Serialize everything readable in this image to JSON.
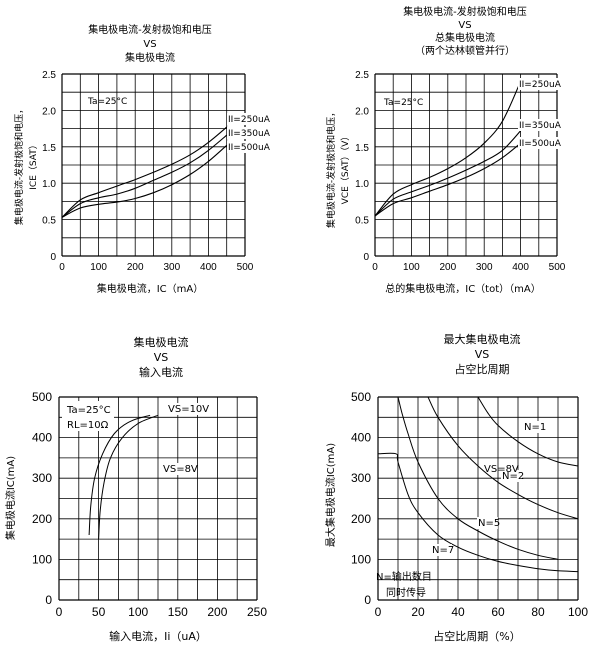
{
  "chart_data": [
    {
      "type": "line",
      "title_lines": [
        "集电极电流-发射极饱和电压",
        "VS",
        "集电极电流"
      ],
      "xlabel": "集电极电流，IC（mA）",
      "ylabel_lines": [
        "集电极电流-发射极饱和电压，",
        "ICE（SAT）"
      ],
      "xlim": [
        0,
        500
      ],
      "ylim": [
        0,
        2.5
      ],
      "xticks": [
        0,
        100,
        200,
        300,
        400,
        500
      ],
      "yticks": [
        0,
        0.5,
        1.0,
        1.5,
        2.0,
        2.5
      ],
      "ytick_labels": [
        "0",
        "0.5",
        "1.0",
        "1.5",
        "2.0",
        "2.5"
      ],
      "annotations": [
        "Ta=25°C"
      ],
      "series": [
        {
          "name": "II=250uA",
          "x": [
            0,
            50,
            100,
            150,
            200,
            250,
            300,
            350,
            400,
            450
          ],
          "y": [
            0.53,
            0.77,
            0.87,
            0.96,
            1.05,
            1.15,
            1.26,
            1.39,
            1.56,
            1.77
          ]
        },
        {
          "name": "II=350uA",
          "x": [
            0,
            50,
            100,
            150,
            200,
            250,
            300,
            350,
            400,
            450
          ],
          "y": [
            0.53,
            0.72,
            0.8,
            0.85,
            0.93,
            1.04,
            1.15,
            1.28,
            1.45,
            1.66
          ]
        },
        {
          "name": "II=500uA",
          "x": [
            0,
            50,
            100,
            150,
            200,
            250,
            300,
            350,
            400,
            450
          ],
          "y": [
            0.53,
            0.66,
            0.71,
            0.74,
            0.79,
            0.87,
            0.98,
            1.12,
            1.3,
            1.52
          ]
        }
      ],
      "grid": true
    },
    {
      "type": "line",
      "title_lines": [
        "集电极电流-发射极饱和电压",
        "VS",
        "总集电极电流",
        "（两个达林顿管并行）"
      ],
      "xlabel": "总的集电极电流，IC（tot）（mA）",
      "ylabel_lines": [
        "集电极电流-发射极饱和电压，",
        "VCE（SAT）（V）"
      ],
      "xlim": [
        0,
        500
      ],
      "ylim": [
        0,
        2.5
      ],
      "xticks": [
        0,
        100,
        200,
        300,
        400,
        500
      ],
      "yticks": [
        0,
        0.5,
        1.0,
        1.5,
        2.0,
        2.5
      ],
      "ytick_labels": [
        "0",
        "0.5",
        "1.0",
        "1.5",
        "2.0",
        "2.5"
      ],
      "annotations": [
        "Ta=25°C"
      ],
      "series": [
        {
          "name": "II=250uA",
          "x": [
            0,
            50,
            100,
            150,
            200,
            250,
            300,
            350,
            400
          ],
          "y": [
            0.55,
            0.85,
            0.98,
            1.08,
            1.2,
            1.35,
            1.55,
            1.85,
            2.4
          ]
        },
        {
          "name": "II=350uA",
          "x": [
            0,
            50,
            100,
            150,
            200,
            250,
            300,
            350,
            400
          ],
          "y": [
            0.55,
            0.78,
            0.88,
            0.97,
            1.07,
            1.18,
            1.3,
            1.45,
            1.72
          ]
        },
        {
          "name": "II=500uA",
          "x": [
            0,
            50,
            100,
            150,
            200,
            250,
            300,
            350,
            400
          ],
          "y": [
            0.55,
            0.72,
            0.8,
            0.89,
            0.98,
            1.08,
            1.2,
            1.35,
            1.55
          ]
        }
      ],
      "grid": true
    },
    {
      "type": "line",
      "title_lines": [
        "集电极电流",
        "VS",
        "输入电流"
      ],
      "xlabel": "输入电流，Ii（uA）",
      "ylabel_lines": [
        "集电极电流IC(mA)"
      ],
      "xlim": [
        0,
        250
      ],
      "ylim": [
        0,
        500
      ],
      "xticks": [
        0,
        50,
        100,
        150,
        200,
        250
      ],
      "yticks": [
        0,
        100,
        200,
        300,
        400,
        500
      ],
      "ytick_labels": [
        "0",
        "100",
        "200",
        "300",
        "400",
        "500"
      ],
      "annotations": [
        "Ta=25°C",
        "RL=10Ω"
      ],
      "series": [
        {
          "name": "VS=10V",
          "x": [
            38,
            40,
            45,
            55,
            70,
            90,
            115
          ],
          "y": [
            160,
            230,
            300,
            360,
            410,
            440,
            455
          ]
        },
        {
          "name": "VS=8V",
          "x": [
            50,
            52,
            57,
            65,
            80,
            100,
            125
          ],
          "y": [
            150,
            220,
            290,
            350,
            400,
            435,
            455
          ]
        }
      ],
      "grid": true
    },
    {
      "type": "line",
      "title_lines": [
        "最大集电极电流",
        "VS",
        "占空比周期"
      ],
      "xlabel": "占空比周期（%）",
      "ylabel_lines": [
        "最大集电极电流IC(mA)"
      ],
      "xlim": [
        0,
        100
      ],
      "ylim": [
        0,
        500
      ],
      "xticks": [
        0,
        20,
        40,
        60,
        80,
        100
      ],
      "yticks": [
        0,
        100,
        200,
        300,
        400,
        500
      ],
      "ytick_labels": [
        "0",
        "100",
        "200",
        "300",
        "400",
        "500"
      ],
      "annotations": [
        "VS=8V",
        "N=输出数目",
        "同时传导"
      ],
      "series": [
        {
          "name": "N=1",
          "x": [
            50,
            55,
            60,
            70,
            80,
            90,
            100
          ],
          "y": [
            500,
            460,
            430,
            390,
            360,
            340,
            330
          ]
        },
        {
          "name": "N=2",
          "x": [
            25,
            30,
            40,
            50,
            60,
            70,
            80,
            90,
            100
          ],
          "y": [
            500,
            450,
            380,
            330,
            290,
            260,
            235,
            215,
            200
          ]
        },
        {
          "name": "N=5",
          "x": [
            10,
            12,
            15,
            20,
            30,
            40,
            50,
            60,
            70,
            80,
            90
          ],
          "y": [
            500,
            460,
            410,
            340,
            250,
            200,
            170,
            145,
            125,
            110,
            100
          ]
        },
        {
          "name": "N=7",
          "x": [
            0,
            9,
            10,
            15,
            20,
            30,
            40,
            50,
            60,
            70,
            80,
            90,
            100
          ],
          "y": [
            360,
            360,
            340,
            260,
            215,
            160,
            130,
            110,
            95,
            85,
            77,
            72,
            70
          ]
        }
      ],
      "grid": true
    }
  ]
}
